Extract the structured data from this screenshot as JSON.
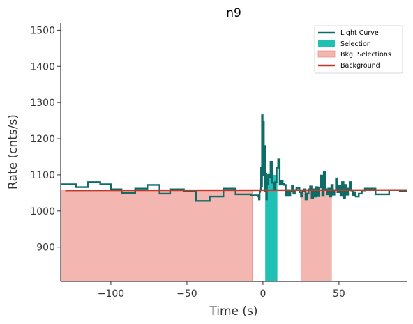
{
  "chart_data": {
    "type": "line",
    "title": "n9",
    "xlabel": "Time (s)",
    "ylabel": "Rate (cnts/s)",
    "xlim": [
      -133,
      95
    ],
    "ylim": [
      805,
      1520
    ],
    "xticks": [
      -100,
      -50,
      0,
      50
    ],
    "xtick_labels": [
      "−100",
      "−50",
      "0",
      "50"
    ],
    "yticks": [
      900,
      1000,
      1100,
      1200,
      1300,
      1400,
      1500
    ],
    "ytick_labels": [
      "900",
      "1000",
      "1100",
      "1200",
      "1300",
      "1400",
      "1500"
    ],
    "grid": false,
    "legend_position": "top-right",
    "legend": [
      {
        "label": "Light Curve",
        "kind": "line"
      },
      {
        "label": "Selection",
        "kind": "patch"
      },
      {
        "label": "Bkg. Selections",
        "kind": "patch"
      },
      {
        "label": "Background",
        "kind": "line"
      }
    ],
    "colors": {
      "light_curve": "#0e6b66",
      "selection": "#20c0b5",
      "bkg_fill": "#f4b6b0",
      "bkg_edge": "#e8958d",
      "background": "#c0392b"
    },
    "light_curve": {
      "x": [
        -133,
        -123,
        -115,
        -107,
        -100,
        -93,
        -84,
        -76,
        -68,
        -61,
        -52,
        -44,
        -35,
        -26,
        -18,
        -8,
        -3,
        -2.6,
        -2.2,
        -1.8,
        -1.4,
        -1,
        -0.6,
        -0.2,
        0.2,
        0.6,
        1,
        1.4,
        1.8,
        2.2,
        2.6,
        3,
        3.4,
        4,
        5,
        6,
        7,
        8,
        9,
        10,
        11,
        12,
        13,
        14,
        15,
        16,
        17,
        18,
        19,
        20,
        21,
        22,
        23,
        24,
        25,
        26,
        27,
        28,
        29,
        30,
        31,
        32,
        33,
        34,
        35,
        36,
        37,
        38,
        39,
        40,
        41,
        42,
        43,
        44,
        45,
        46,
        47,
        48,
        49,
        50,
        51,
        52,
        53,
        54,
        55,
        56,
        57,
        58,
        59,
        60,
        61,
        63,
        65,
        67,
        74,
        83,
        90,
        95
      ],
      "y": [
        1074,
        1066,
        1080,
        1074,
        1060,
        1050,
        1062,
        1072,
        1048,
        1060,
        1056,
        1028,
        1040,
        1062,
        1046,
        1043,
        1040,
        1032,
        1053,
        1062,
        1120,
        1068,
        1265,
        1098,
        1248,
        1140,
        1180,
        1056,
        1103,
        1032,
        1087,
        1073,
        1100,
        1093,
        1136,
        1078,
        1058,
        1080,
        1120,
        1143,
        1073,
        1083,
        1075,
        1072,
        1042,
        1058,
        1042,
        1056,
        1070,
        1048,
        1058,
        1064,
        1063,
        1052,
        1040,
        1055,
        1060,
        1032,
        1048,
        1060,
        1068,
        1036,
        1060,
        1040,
        1066,
        1041,
        1065,
        1098,
        1042,
        1108,
        1060,
        1046,
        1062,
        1040,
        1072,
        1045,
        1058,
        1090,
        1052,
        1070,
        1042,
        1080,
        1036,
        1072,
        1045,
        1062,
        1080,
        1057,
        1043,
        1052,
        1040,
        1048,
        1057,
        1062,
        1046,
        1058,
        1055,
        1055
      ]
    },
    "selection_interval": {
      "x": [
        1.5,
        9.5
      ],
      "rate": 1100
    },
    "bkg_intervals": [
      {
        "x": [
          -133,
          -7
        ],
        "rate": 1058
      },
      {
        "x": [
          25,
          45
        ],
        "rate": 1058
      }
    ],
    "background": {
      "x": [
        -130,
        95
      ],
      "y": [
        1057,
        1058
      ]
    }
  }
}
